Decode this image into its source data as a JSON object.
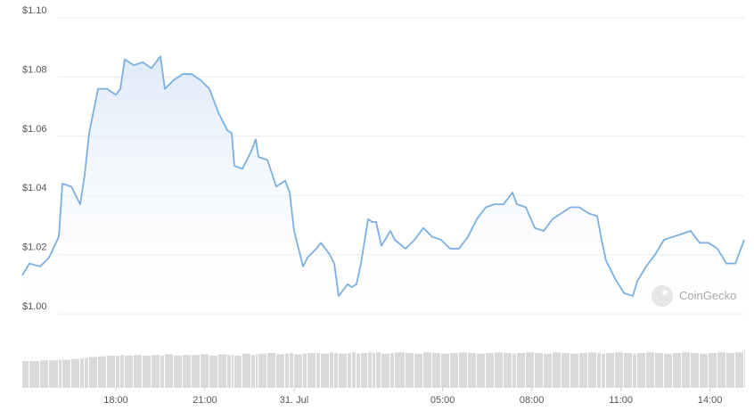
{
  "chart_data": {
    "type": "area",
    "watermark": "CoinGecko",
    "color": "#7bb0e0",
    "x": [
      14.85,
      15.09,
      15.45,
      15.75,
      16.08,
      16.2,
      16.5,
      16.8,
      16.95,
      17.1,
      17.4,
      17.7,
      18.0,
      18.15,
      18.3,
      18.6,
      18.9,
      19.2,
      19.5,
      19.65,
      19.95,
      20.25,
      20.55,
      20.85,
      21.15,
      21.45,
      21.75,
      21.9,
      21.99,
      22.26,
      22.56,
      22.71,
      22.8,
      23.1,
      23.4,
      23.7,
      23.85,
      24.0,
      24.3,
      24.45,
      24.75,
      24.9,
      25.2,
      25.35,
      25.5,
      25.8,
      25.95,
      26.1,
      26.25,
      26.49,
      26.64,
      26.76,
      26.94,
      27.24,
      27.39,
      27.75,
      28.05,
      28.35,
      28.65,
      28.95,
      29.25,
      29.55,
      29.85,
      30.15,
      30.45,
      30.75,
      31.05,
      31.35,
      31.5,
      31.8,
      32.1,
      32.4,
      32.7,
      33.0,
      33.3,
      33.6,
      33.9,
      34.2,
      34.35,
      34.5,
      34.8,
      35.1,
      35.4,
      35.55,
      35.85,
      36.15,
      36.45,
      36.75,
      37.05,
      37.35,
      37.65,
      37.95,
      38.25,
      38.55,
      38.85,
      39.15
    ],
    "series": [
      {
        "values": [
          1.013,
          1.017,
          1.016,
          1.019,
          1.026,
          1.044,
          1.043,
          1.037,
          1.047,
          1.061,
          1.076,
          1.076,
          1.074,
          1.076,
          1.086,
          1.084,
          1.085,
          1.083,
          1.087,
          1.076,
          1.079,
          1.081,
          1.081,
          1.079,
          1.076,
          1.068,
          1.062,
          1.061,
          1.05,
          1.049,
          1.055,
          1.059,
          1.053,
          1.052,
          1.043,
          1.045,
          1.041,
          1.028,
          1.016,
          1.019,
          1.022,
          1.024,
          1.02,
          1.017,
          1.006,
          1.01,
          1.009,
          1.01,
          1.017,
          1.032,
          1.031,
          1.031,
          1.023,
          1.028,
          1.025,
          1.022,
          1.025,
          1.029,
          1.026,
          1.025,
          1.022,
          1.022,
          1.026,
          1.032,
          1.036,
          1.037,
          1.037,
          1.041,
          1.037,
          1.036,
          1.029,
          1.028,
          1.032,
          1.034,
          1.036,
          1.036,
          1.034,
          1.033,
          1.025,
          1.018,
          1.012,
          1.007,
          1.006,
          1.011,
          1.016,
          1.02,
          1.025,
          1.026,
          1.027,
          1.028,
          1.024,
          1.024,
          1.022,
          1.017,
          1.017,
          1.025
        ]
      },
      {
        "axis": "y2",
        "color": "#d9d9d9",
        "values": [
          0.4,
          0.4,
          0.41,
          0.41,
          0.42,
          0.42,
          0.43,
          0.44,
          0.45,
          0.46,
          0.47,
          0.48,
          0.48,
          0.49,
          0.48,
          0.49,
          0.48,
          0.49,
          0.48,
          0.5,
          0.48,
          0.49,
          0.49,
          0.5,
          0.48,
          0.5,
          0.49,
          0.5,
          0.48,
          0.51,
          0.49,
          0.5,
          0.51,
          0.52,
          0.5,
          0.51,
          0.52,
          0.5,
          0.51,
          0.52,
          0.52,
          0.51,
          0.53,
          0.52,
          0.51,
          0.52,
          0.53,
          0.51,
          0.52,
          0.53,
          0.52,
          0.53,
          0.51,
          0.52,
          0.53,
          0.52,
          0.51,
          0.53,
          0.52,
          0.51,
          0.52,
          0.53,
          0.52,
          0.51,
          0.52,
          0.53,
          0.52,
          0.51,
          0.52,
          0.53,
          0.52,
          0.51,
          0.53,
          0.52,
          0.51,
          0.52,
          0.53,
          0.52,
          0.51,
          0.52,
          0.53,
          0.52,
          0.51,
          0.52,
          0.53,
          0.52,
          0.51,
          0.52,
          0.53,
          0.52,
          0.51,
          0.52,
          0.53,
          0.52,
          0.53,
          0.54
        ]
      }
    ],
    "xlim": [
      14.85,
      39.15
    ],
    "xticks": [
      {
        "value": 18,
        "label": "18:00"
      },
      {
        "value": 21,
        "label": "21:00"
      },
      {
        "value": 24,
        "label": "31. Jul"
      },
      {
        "value": 29,
        "label": "05:00"
      },
      {
        "value": 32,
        "label": "08:00"
      },
      {
        "value": 35,
        "label": "11:00"
      },
      {
        "value": 38,
        "label": "14:00"
      }
    ],
    "ylim": [
      1.0,
      1.1
    ],
    "yticks": [
      {
        "value": 1.0,
        "label": "$1.00"
      },
      {
        "value": 1.02,
        "label": "$1.02"
      },
      {
        "value": 1.04,
        "label": "$1.04"
      },
      {
        "value": 1.06,
        "label": "$1.06"
      },
      {
        "value": 1.08,
        "label": "$1.08"
      },
      {
        "value": 1.1,
        "label": "$1.10"
      }
    ],
    "y2lim": [
      0,
      1
    ],
    "grid": true
  }
}
